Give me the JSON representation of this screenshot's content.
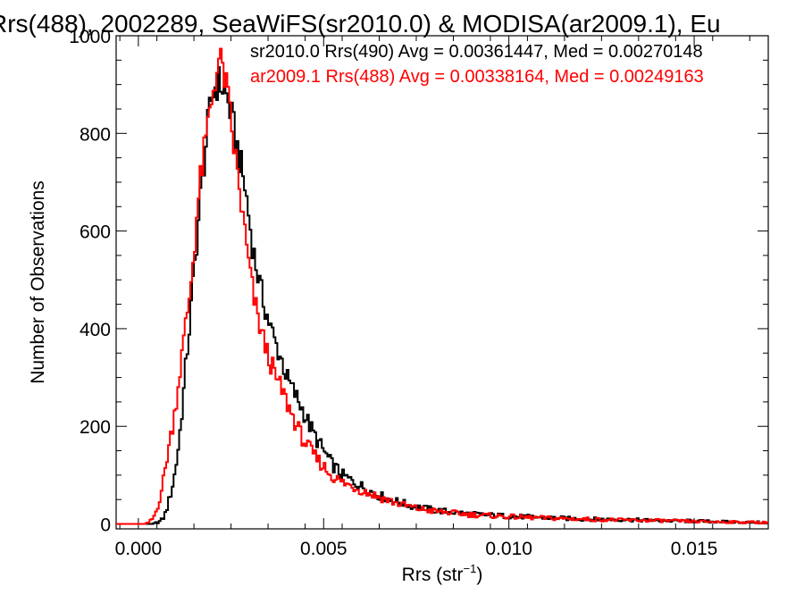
{
  "chart_data": {
    "type": "line",
    "step": true,
    "title": "Rrs(488), 2002289, SeaWiFS(sr2010.0) & MODISA(ar2009.1), Eu",
    "xlabel": "Rrs (str",
    "xlabel_sup": "−1",
    "xlabel_close": ")",
    "ylabel": "Number of Observations",
    "xlim": [
      -0.0006,
      0.017
    ],
    "ylim": [
      -10,
      1000
    ],
    "xticks": [
      0.0,
      0.005,
      0.01,
      0.015
    ],
    "xtick_labels": [
      "0.000",
      "0.005",
      "0.010",
      "0.015"
    ],
    "yticks": [
      0,
      200,
      400,
      600,
      800,
      1000
    ],
    "ytick_labels": [
      "0",
      "200",
      "400",
      "600",
      "800",
      "1000"
    ],
    "grid": false,
    "legend_placement": "top-right",
    "series": [
      {
        "name": "sr2010.0 Rrs(490) Avg = 0.00361447, Med = 0.00270148",
        "color": "#000000",
        "points": [
          [
            -0.0006,
            0
          ],
          [
            0.0004,
            0
          ],
          [
            0.0006,
            6
          ],
          [
            0.0007,
            15
          ],
          [
            0.0008,
            40
          ],
          [
            0.0009,
            70
          ],
          [
            0.001,
            110
          ],
          [
            0.0011,
            170
          ],
          [
            0.0012,
            250
          ],
          [
            0.0013,
            340
          ],
          [
            0.0014,
            420
          ],
          [
            0.0015,
            510
          ],
          [
            0.0016,
            600
          ],
          [
            0.0017,
            690
          ],
          [
            0.0018,
            760
          ],
          [
            0.0019,
            830
          ],
          [
            0.002,
            880
          ],
          [
            0.0021,
            900
          ],
          [
            0.0022,
            905
          ],
          [
            0.0023,
            890
          ],
          [
            0.0024,
            870
          ],
          [
            0.0025,
            840
          ],
          [
            0.0026,
            800
          ],
          [
            0.0027,
            760
          ],
          [
            0.0028,
            720
          ],
          [
            0.0029,
            680
          ],
          [
            0.003,
            620
          ],
          [
            0.0031,
            560
          ],
          [
            0.0032,
            520
          ],
          [
            0.0033,
            480
          ],
          [
            0.0034,
            450
          ],
          [
            0.0035,
            420
          ],
          [
            0.0036,
            395
          ],
          [
            0.0037,
            370
          ],
          [
            0.0038,
            350
          ],
          [
            0.0039,
            330
          ],
          [
            0.004,
            300
          ],
          [
            0.0042,
            270
          ],
          [
            0.0044,
            240
          ],
          [
            0.0046,
            205
          ],
          [
            0.0048,
            175
          ],
          [
            0.005,
            150
          ],
          [
            0.0052,
            125
          ],
          [
            0.0055,
            100
          ],
          [
            0.006,
            78
          ],
          [
            0.0065,
            58
          ],
          [
            0.007,
            45
          ],
          [
            0.0075,
            35
          ],
          [
            0.008,
            28
          ],
          [
            0.009,
            20
          ],
          [
            0.01,
            16
          ],
          [
            0.011,
            13
          ],
          [
            0.012,
            10
          ],
          [
            0.013,
            9
          ],
          [
            0.014,
            7
          ],
          [
            0.015,
            6
          ],
          [
            0.016,
            4
          ],
          [
            0.017,
            3
          ]
        ]
      },
      {
        "name": "ar2009.1 Rrs(488) Avg = 0.00338164, Med = 0.00249163",
        "color": "#ff0000",
        "points": [
          [
            -0.0006,
            0
          ],
          [
            0.0002,
            0
          ],
          [
            0.0003,
            4
          ],
          [
            0.0004,
            12
          ],
          [
            0.0005,
            30
          ],
          [
            0.0006,
            60
          ],
          [
            0.0007,
            100
          ],
          [
            0.0008,
            150
          ],
          [
            0.0009,
            190
          ],
          [
            0.001,
            240
          ],
          [
            0.0011,
            300
          ],
          [
            0.0012,
            360
          ],
          [
            0.0013,
            420
          ],
          [
            0.0014,
            480
          ],
          [
            0.0015,
            560
          ],
          [
            0.0016,
            650
          ],
          [
            0.0017,
            720
          ],
          [
            0.0018,
            770
          ],
          [
            0.0019,
            830
          ],
          [
            0.002,
            880
          ],
          [
            0.0021,
            930
          ],
          [
            0.0022,
            945
          ],
          [
            0.0023,
            930
          ],
          [
            0.0024,
            880
          ],
          [
            0.0025,
            820
          ],
          [
            0.0026,
            760
          ],
          [
            0.0027,
            700
          ],
          [
            0.0028,
            640
          ],
          [
            0.0029,
            580
          ],
          [
            0.003,
            520
          ],
          [
            0.0031,
            470
          ],
          [
            0.0032,
            430
          ],
          [
            0.0033,
            400
          ],
          [
            0.0034,
            370
          ],
          [
            0.0035,
            345
          ],
          [
            0.0036,
            325
          ],
          [
            0.0037,
            300
          ],
          [
            0.0038,
            285
          ],
          [
            0.0039,
            270
          ],
          [
            0.004,
            250
          ],
          [
            0.0042,
            215
          ],
          [
            0.0044,
            180
          ],
          [
            0.0046,
            155
          ],
          [
            0.0048,
            135
          ],
          [
            0.005,
            118
          ],
          [
            0.0052,
            100
          ],
          [
            0.0055,
            85
          ],
          [
            0.006,
            70
          ],
          [
            0.0065,
            55
          ],
          [
            0.007,
            42
          ],
          [
            0.0075,
            32
          ],
          [
            0.008,
            26
          ],
          [
            0.009,
            19
          ],
          [
            0.01,
            15
          ],
          [
            0.011,
            12
          ],
          [
            0.012,
            10
          ],
          [
            0.013,
            8
          ],
          [
            0.014,
            7
          ],
          [
            0.015,
            5
          ],
          [
            0.016,
            4
          ],
          [
            0.017,
            3
          ]
        ]
      }
    ]
  }
}
